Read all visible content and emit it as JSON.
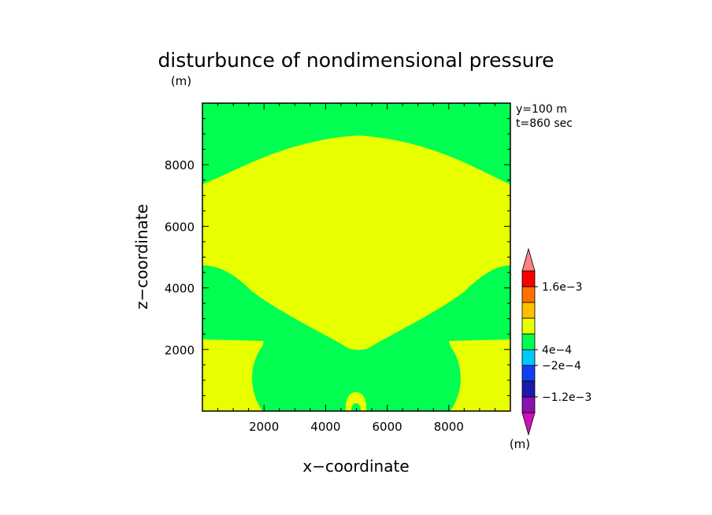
{
  "chart_data": {
    "type": "heatmap",
    "title": "disturbunce of nondimensional pressure",
    "units_top": "(m)",
    "units_colorbar": "(m)",
    "info_y": "y=100 m",
    "info_t": "t=860 sec",
    "xlabel": "x−coordinate",
    "ylabel": "z−coordinate",
    "xlim": [
      0,
      10000
    ],
    "ylim": [
      0,
      10000
    ],
    "xticks": [
      2000,
      4000,
      6000,
      8000
    ],
    "yticks": [
      2000,
      4000,
      6000,
      8000
    ],
    "colorbar": {
      "labels": [
        "1.6e−3",
        "4e−4",
        "−2e−4",
        "−1.2e−3"
      ],
      "colors": [
        "#d010b8",
        "#8a10b0",
        "#1a1aa8",
        "#1040f0",
        "#00c8ff",
        "#00ff50",
        "#e8ff00",
        "#ffc000",
        "#ff7000",
        "#f80000",
        "#ff8080"
      ]
    },
    "regions": {
      "background": "#00ff50",
      "positive": "#e8ff00"
    }
  }
}
